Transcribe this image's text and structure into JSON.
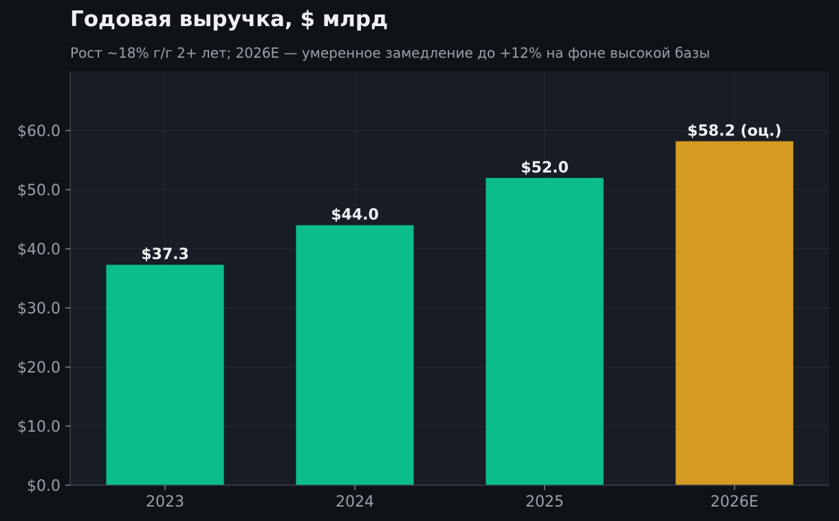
{
  "chart_data": {
    "type": "bar",
    "title": "Годовая выручка, $ млрд",
    "subtitle": "Рост ~18% г/г 2+ лет; 2026E — умеренное замедление до +12% на фоне высокой базы",
    "categories": [
      "2023",
      "2024",
      "2025",
      "2026E"
    ],
    "values": [
      37.3,
      44.0,
      52.0,
      58.2
    ],
    "data_labels": [
      "$37.3",
      "$44.0",
      "$52.0",
      "$58.2 (оц.)"
    ],
    "bar_colors": [
      "#0bbd8a",
      "#0bbd8a",
      "#0bbd8a",
      "#d49a24"
    ],
    "y_ticks": [
      0,
      10,
      20,
      30,
      40,
      50,
      60
    ],
    "y_tick_labels": [
      "$0.0",
      "$10.0",
      "$20.0",
      "$30.0",
      "$40.0",
      "$50.0",
      "$60.0"
    ],
    "xlabel": "",
    "ylabel": "",
    "ylim": [
      0,
      70
    ],
    "grid": true,
    "legend": "none"
  },
  "colors": {
    "background": "#0f1318",
    "plot_background": "#181c24",
    "grid": "#262b34",
    "axis": "#3a404a",
    "text": "#eef0f3",
    "muted_text": "#9aa1ab"
  }
}
